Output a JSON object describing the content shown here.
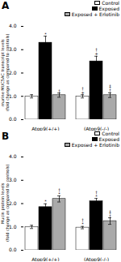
{
  "chart_data": [
    {
      "type": "bar",
      "title": "A",
      "ylabel": "murine MUC5AC transcript levels\n(fold change as compared to controls)",
      "categories": [
        "Atop9(+/+)",
        "(Atop9(-/-)"
      ],
      "series": [
        {
          "name": "Control",
          "color": "white",
          "values": [
            1.0,
            1.0
          ],
          "errors": [
            0.07,
            0.07
          ],
          "annotations": [
            null,
            "†\n+"
          ]
        },
        {
          "name": "Exposed",
          "color": "black",
          "values": [
            3.3,
            2.5
          ],
          "errors": [
            0.28,
            0.22
          ],
          "annotations": [
            "*",
            "†\n+"
          ]
        },
        {
          "name": "Exposed + Erlotinib",
          "color": "#aaaaaa",
          "values": [
            1.05,
            1.05
          ],
          "errors": [
            0.09,
            0.1
          ],
          "annotations": [
            "†",
            "‡\n†"
          ]
        }
      ],
      "ylim": [
        0,
        4
      ],
      "yticks": [
        0,
        1,
        2,
        3,
        4
      ],
      "legend": "upper right"
    },
    {
      "type": "bar",
      "title": "B",
      "ylabel": "Mucin protein levels\n(fold change as compared to controls)",
      "categories": [
        "Atop9(+/+)",
        "(Atop9(-/-)"
      ],
      "series": [
        {
          "name": "Control",
          "color": "white",
          "values": [
            1.0,
            0.97
          ],
          "errors": [
            0.07,
            0.05
          ],
          "annotations": [
            null,
            "†\n*"
          ]
        },
        {
          "name": "Exposed",
          "color": "black",
          "values": [
            1.85,
            2.1
          ],
          "errors": [
            0.14,
            0.12
          ],
          "annotations": [
            "*",
            "†\n*"
          ]
        },
        {
          "name": "Exposed + Erlotinib",
          "color": "#aaaaaa",
          "values": [
            2.2,
            1.25
          ],
          "errors": [
            0.13,
            0.14
          ],
          "annotations": [
            "†\n*",
            "‡\n†"
          ]
        }
      ],
      "ylim": [
        0,
        4
      ],
      "yticks": [
        0,
        1,
        2,
        3,
        4
      ],
      "legend": "upper right"
    }
  ]
}
